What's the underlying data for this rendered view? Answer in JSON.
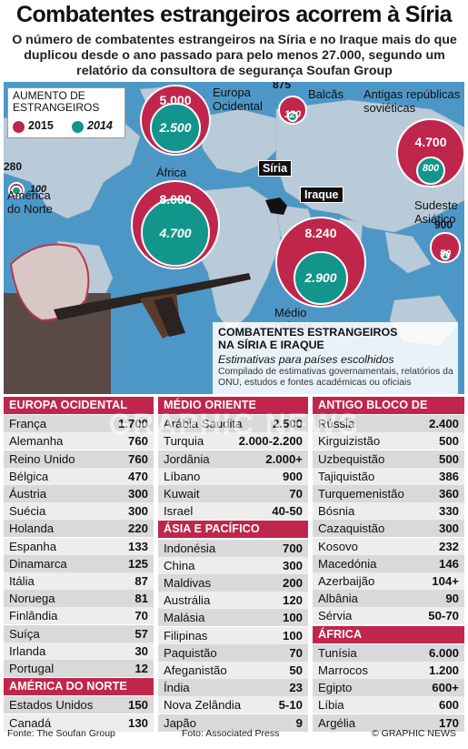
{
  "title": "Combatentes estrangeiros acorrem à Síria",
  "subtitle": "O número de combatentes estrangeiros na Síria e no Iraque mais do que duplicou desde o ano passado para pelo menos 27.000, segundo um relatório da consultora de segurança Soufan Group",
  "legend": {
    "title": "AUMENTO DE ESTRANGEIROS",
    "s2015": "2015",
    "s2014": "2014"
  },
  "colors": {
    "y2015": "#c0264c",
    "y2014": "#12958a",
    "sea": "#4d97c7",
    "land": "#b9cbd8"
  },
  "map_labels": {
    "syria": "Síria",
    "iraq": "Iraque"
  },
  "callout": {
    "title": "COMBATENTES ESTRANGEIROS NA SÍRIA E IRAQUE",
    "sub": "Estimativas para países escolhidos",
    "note": "Compilado de estimativas governamentais, relatórios da ONU, estudos e fontes académicas ou oficiais"
  },
  "watermark": "GRAPHIC NEWS",
  "chart_data": {
    "type": "bubble",
    "series": [
      {
        "name": "2015"
      },
      {
        "name": "2014"
      }
    ],
    "regions": [
      {
        "name": "Europa Ocidental",
        "v2015": "5.000",
        "v2014": "2.500"
      },
      {
        "name": "Balcãs",
        "v2015": "875",
        "v2014": "120"
      },
      {
        "name": "Antigas repúblicas soviéticas",
        "v2015": "4.700",
        "v2014": "800"
      },
      {
        "name": "América do Norte",
        "v2015": "280",
        "v2014": "100"
      },
      {
        "name": "África",
        "v2015": "8.000",
        "v2014": "4.700"
      },
      {
        "name": "Médio Oriente",
        "v2015": "8.240",
        "v2014": "2.900"
      },
      {
        "name": "Sudeste Asiático",
        "v2015": "900",
        "v2014": "50"
      }
    ],
    "tables": [
      {
        "header": "Europa Ocidental",
        "rows": [
          [
            "França",
            "1.700"
          ],
          [
            "Alemanha",
            "760"
          ],
          [
            "Reino Unido",
            "760"
          ],
          [
            "Bélgica",
            "470"
          ],
          [
            "Áustria",
            "300"
          ],
          [
            "Suécia",
            "300"
          ],
          [
            "Holanda",
            "220"
          ],
          [
            "Espanha",
            "133"
          ],
          [
            "Dinamarca",
            "125"
          ],
          [
            "Itália",
            "87"
          ],
          [
            "Noruega",
            "81"
          ],
          [
            "Finlândia",
            "70"
          ],
          [
            "Suíça",
            "57"
          ],
          [
            "Irlanda",
            "30"
          ],
          [
            "Portugal",
            "12"
          ]
        ]
      },
      {
        "header": "América do Norte",
        "rows": [
          [
            "Estados Unidos",
            "150"
          ],
          [
            "Canadá",
            "130"
          ]
        ]
      },
      {
        "header": "Médio Oriente",
        "rows": [
          [
            "Arábia Saudita",
            "2.500"
          ],
          [
            "Turquia",
            "2.000-2.200"
          ],
          [
            "Jordânia",
            "2.000+"
          ],
          [
            "Líbano",
            "900"
          ],
          [
            "Kuwait",
            "70"
          ],
          [
            "Israel",
            "40-50"
          ]
        ]
      },
      {
        "header": "Ásia e Pacífico",
        "rows": [
          [
            "Indonésia",
            "700"
          ],
          [
            "China",
            "300"
          ],
          [
            "Maldivas",
            "200"
          ],
          [
            "Austrália",
            "120"
          ],
          [
            "Malásia",
            "100"
          ],
          [
            "Filipinas",
            "100"
          ],
          [
            "Paquistão",
            "70"
          ],
          [
            "Afeganistão",
            "50"
          ],
          [
            "Índia",
            "23"
          ],
          [
            "Nova Zelândia",
            "5-10"
          ],
          [
            "Japão",
            "9"
          ]
        ]
      },
      {
        "header": "Antigo bloco de Leste",
        "rows": [
          [
            "Rússia",
            "2.400"
          ],
          [
            "Kirguizistão",
            "500"
          ],
          [
            "Uzbequistão",
            "500"
          ],
          [
            "Tajiquistão",
            "386"
          ],
          [
            "Turquemenistão",
            "360"
          ],
          [
            "Bósnia",
            "330"
          ],
          [
            "Cazaquistão",
            "300"
          ],
          [
            "Kosovo",
            "232"
          ],
          [
            "Macedónia",
            "146"
          ],
          [
            "Azerbaijão",
            "104+"
          ],
          [
            "Albânia",
            "90"
          ],
          [
            "Sérvia",
            "50-70"
          ]
        ]
      },
      {
        "header": "África",
        "rows": [
          [
            "Tunísia",
            "6.000"
          ],
          [
            "Marrocos",
            "1.200"
          ],
          [
            "Egipto",
            "600+"
          ],
          [
            "Líbia",
            "600"
          ],
          [
            "Argélia",
            "170"
          ]
        ]
      }
    ]
  },
  "footer": {
    "source": "Fonte: The Soufan Group",
    "photo": "Foto: Associated Press",
    "copy": "© GRAPHIC NEWS"
  }
}
